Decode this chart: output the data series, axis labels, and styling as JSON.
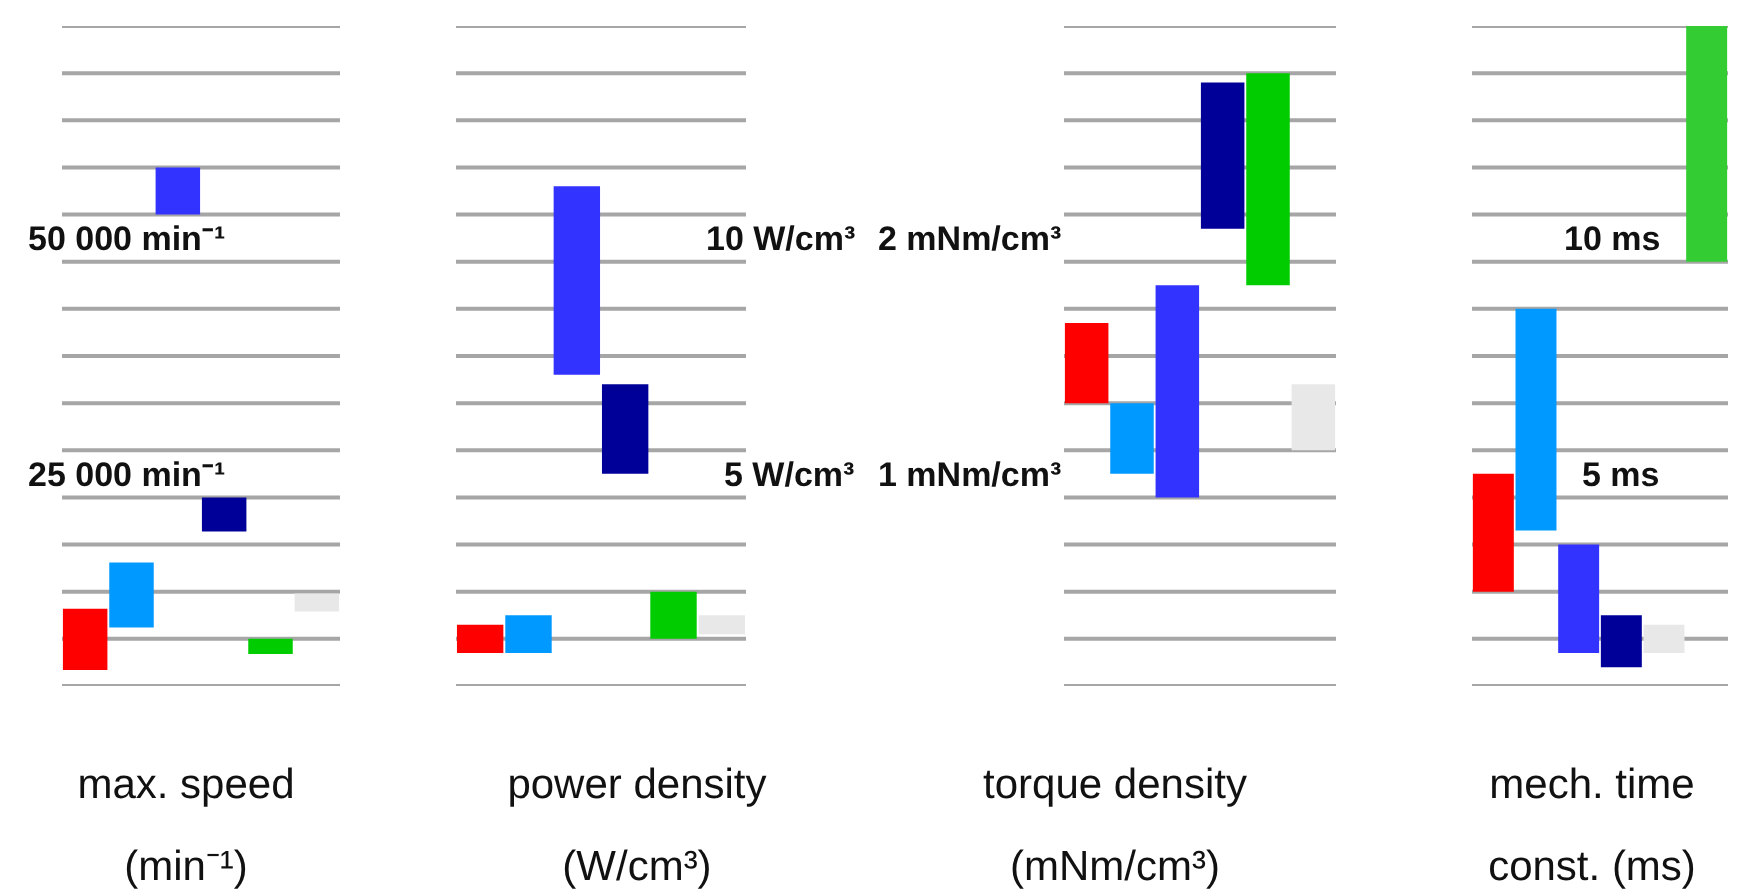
{
  "chart_data": [
    {
      "type": "bar",
      "xlabel": "max. speed\n(min⁻¹)",
      "categories": [
        null,
        null,
        null,
        null,
        null,
        null
      ],
      "base": [
        6700,
        11200,
        55000,
        21400,
        8400,
        12900
      ],
      "values": [
        6500,
        6900,
        5000,
        3600,
        1600,
        1900
      ],
      "colors": [
        "#ff0000",
        "#0099ff",
        "#3333ff",
        "#000099",
        "#00cc00",
        "#e8e8e8"
      ],
      "ylim": [
        5000,
        75000
      ],
      "yticks": [
        {
          "value": 5000,
          "label": null
        },
        {
          "value": 10000,
          "label": null
        },
        {
          "value": 15000,
          "label": null
        },
        {
          "value": 20000,
          "label": null
        },
        {
          "value": 25000,
          "label": "25 000 min⁻¹"
        },
        {
          "value": 30000,
          "label": null
        },
        {
          "value": 35000,
          "label": null
        },
        {
          "value": 40000,
          "label": null
        },
        {
          "value": 45000,
          "label": null
        },
        {
          "value": 50000,
          "label": "50 000 min⁻¹"
        },
        {
          "value": 55000,
          "label": null
        },
        {
          "value": 60000,
          "label": null
        },
        {
          "value": 65000,
          "label": null
        },
        {
          "value": 70000,
          "label": null
        },
        {
          "value": 75000,
          "label": null
        }
      ],
      "grid": "y",
      "tick_labels": "y"
    },
    {
      "type": "bar",
      "xlabel": "power density\n(W/cm³)",
      "categories": [
        null,
        null,
        null,
        null,
        null,
        null
      ],
      "base": [
        1.7,
        1.7,
        7.6,
        5.5,
        2.0,
        2.1
      ],
      "values": [
        0.6,
        0.8,
        4.0,
        1.9,
        1.0,
        0.4
      ],
      "colors": [
        "#ff0000",
        "#0099ff",
        "#3333ff",
        "#000099",
        "#00cc00",
        "#e8e8e8"
      ],
      "ylim": [
        1,
        15
      ],
      "yticks": [
        {
          "value": 1,
          "label": null
        },
        {
          "value": 2,
          "label": null
        },
        {
          "value": 3,
          "label": null
        },
        {
          "value": 4,
          "label": null
        },
        {
          "value": 5,
          "label": "5 W/cm³"
        },
        {
          "value": 6,
          "label": null
        },
        {
          "value": 7,
          "label": null
        },
        {
          "value": 8,
          "label": null
        },
        {
          "value": 9,
          "label": null
        },
        {
          "value": 10,
          "label": "10 W/cm³"
        },
        {
          "value": 11,
          "label": null
        },
        {
          "value": 12,
          "label": null
        },
        {
          "value": 13,
          "label": null
        },
        {
          "value": 14,
          "label": null
        },
        {
          "value": 15,
          "label": null
        }
      ],
      "grid": "y",
      "tick_labels": "y"
    },
    {
      "type": "bar",
      "xlabel": "torque density\n(mNm/cm³)",
      "categories": [
        null,
        null,
        null,
        null,
        null,
        null
      ],
      "base": [
        1.4,
        1.1,
        1.0,
        2.14,
        1.9,
        1.2
      ],
      "values": [
        0.34,
        0.3,
        0.9,
        0.62,
        0.9,
        0.28
      ],
      "colors": [
        "#ff0000",
        "#0099ff",
        "#3333ff",
        "#000099",
        "#00cc00",
        "#e8e8e8"
      ],
      "ylim": [
        0.2,
        3.0
      ],
      "yticks": [
        {
          "value": 0.2,
          "label": null
        },
        {
          "value": 0.4,
          "label": null
        },
        {
          "value": 0.6,
          "label": null
        },
        {
          "value": 0.8,
          "label": null
        },
        {
          "value": 1,
          "label": "1 mNm/cm³"
        },
        {
          "value": 1.2,
          "label": null
        },
        {
          "value": 1.4,
          "label": null
        },
        {
          "value": 1.6,
          "label": null
        },
        {
          "value": 1.8,
          "label": null
        },
        {
          "value": 2,
          "label": "2 mNm/cm³"
        },
        {
          "value": 2.2,
          "label": null
        },
        {
          "value": 2.4,
          "label": null
        },
        {
          "value": 2.6,
          "label": null
        },
        {
          "value": 2.8,
          "label": null
        },
        {
          "value": 3,
          "label": null
        }
      ],
      "grid": "y",
      "tick_labels": "y"
    },
    {
      "type": "bar",
      "xlabel": "mech. time\nconst. (ms)",
      "categories": [
        null,
        null,
        null,
        null,
        null,
        null
      ],
      "base": [
        3.0,
        4.3,
        1.7,
        1.4,
        1.7,
        10
      ],
      "values": [
        2.5,
        4.7,
        2.3,
        1.1,
        0.6,
        5
      ],
      "colors": [
        "#ff0000",
        "#0099ff",
        "#3333ff",
        "#000099",
        "#e8e8e8",
        "#33cc33"
      ],
      "ylim": [
        1,
        15
      ],
      "yticks": [
        {
          "value": 1,
          "label": null
        },
        {
          "value": 2,
          "label": null
        },
        {
          "value": 3,
          "label": null
        },
        {
          "value": 4,
          "label": null
        },
        {
          "value": 5,
          "label": "5 ms"
        },
        {
          "value": 6,
          "label": null
        },
        {
          "value": 7,
          "label": null
        },
        {
          "value": 8,
          "label": null
        },
        {
          "value": 9,
          "label": null
        },
        {
          "value": 10,
          "label": "10 ms"
        },
        {
          "value": 11,
          "label": null
        },
        {
          "value": 12,
          "label": null
        },
        {
          "value": 13,
          "label": null
        },
        {
          "value": 14,
          "label": null
        },
        {
          "value": 15,
          "label": null
        }
      ],
      "grid": "y",
      "tick_labels": "y"
    }
  ]
}
